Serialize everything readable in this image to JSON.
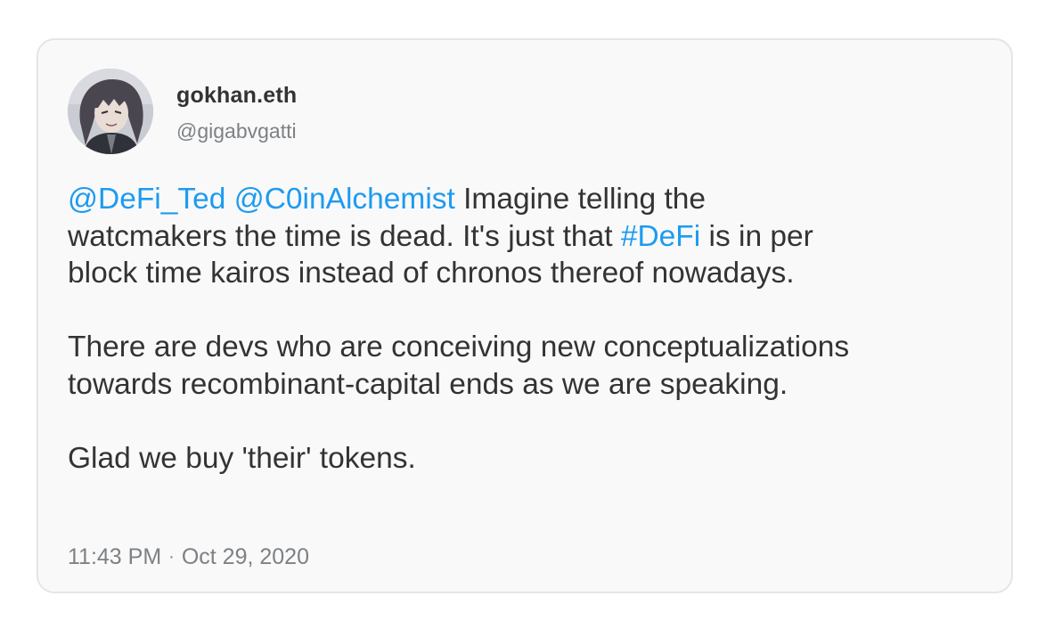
{
  "author": {
    "display_name": "gokhan.eth",
    "handle": "@gigabvgatti"
  },
  "tweet": {
    "line1": {
      "mention1": "@DeFi_Ted",
      "mention2": "@C0inAlchemist",
      "text_a": " Imagine telling the"
    },
    "line2": {
      "text_a": "watcmakers the time is dead. It's just that ",
      "hashtag": "#DeFi",
      "text_b": " is in per"
    },
    "line3": "block time kairos instead of chronos thereof nowadays.",
    "para2_line1": "There are devs who are conceiving new conceptualizations",
    "para2_line2": "towards recombinant-capital ends as we are speaking.",
    "para3": "Glad we buy 'their' tokens."
  },
  "meta": {
    "time": "11:43 PM",
    "separator": "·",
    "date": "Oct 29, 2020"
  },
  "colors": {
    "link": "#1d9bf0",
    "text": "#333333",
    "muted": "#7d8185",
    "card_bg": "#f9f9f9",
    "card_border": "#e3e5e8"
  },
  "icons": {
    "avatar": "avatar-image"
  }
}
